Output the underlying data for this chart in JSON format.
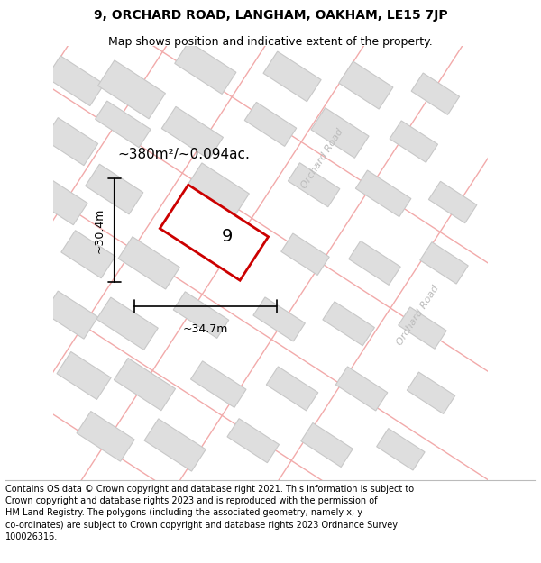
{
  "title": "9, ORCHARD ROAD, LANGHAM, OAKHAM, LE15 7JP",
  "subtitle": "Map shows position and indicative extent of the property.",
  "footer": "Contains OS data © Crown copyright and database right 2021. This information is subject to Crown copyright and database rights 2023 and is reproduced with the permission of HM Land Registry. The polygons (including the associated geometry, namely x, y co-ordinates) are subject to Crown copyright and database rights 2023 Ordnance Survey 100026316.",
  "map_bg": "#f5f4f2",
  "building_fill": "#dedede",
  "building_stroke": "#c8c8c8",
  "road_line_color": "#f2aaaa",
  "plot_fill": "#ffffff",
  "plot_stroke": "#cc0000",
  "plot_label": "9",
  "area_text": "~380m²/~0.094ac.",
  "dim_width": "~34.7m",
  "dim_height": "~30.4m",
  "orchard_road_label": "Orchard Road",
  "orchard_road_label2": "Orchard Road",
  "title_fontsize": 10,
  "subtitle_fontsize": 9,
  "footer_fontsize": 7,
  "white_bg": "#ffffff"
}
